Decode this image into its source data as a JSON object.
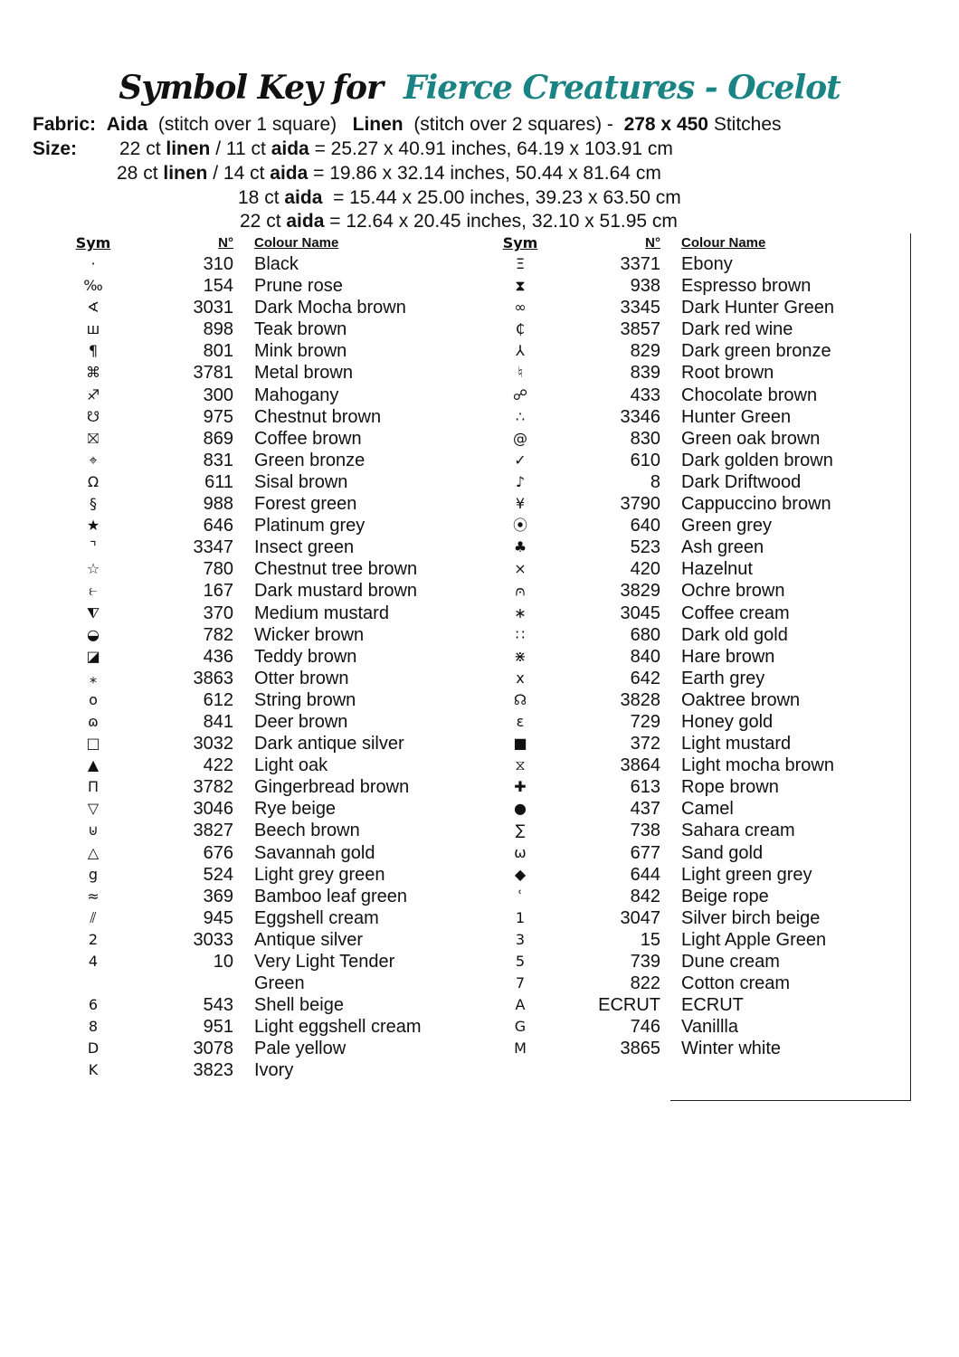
{
  "title": {
    "prefix": "Symbol Key for",
    "pattern": "Fierce Creatures - Ocelot",
    "accent_color": "#1a8383"
  },
  "fabric": {
    "label": "Fabric:",
    "aida": "Aida",
    "aida_note": "(stitch over 1 square)",
    "linen": "Linen",
    "linen_note": "(stitch over 2 squares) -",
    "stitches": "278 x 450",
    "stitches_label": "Stitches"
  },
  "size": {
    "label": "Size:",
    "lines": [
      {
        "a": "22 ct ",
        "b": "linen",
        "c": " / 11 ct ",
        "d": "aida",
        "e": " = 25.27 x 40.91 inches, 64.19 x 103.91 cm"
      },
      {
        "a": "28 ct ",
        "b": "linen",
        "c": " / 14 ct ",
        "d": "aida",
        "e": " = 19.86 x 32.14 inches, 50.44 x 81.64 cm"
      },
      {
        "a": "18 ct ",
        "b": "",
        "c": "",
        "d": "aida",
        "e": "  = 15.44 x 25.00 inches, 39.23 x 63.50 cm"
      },
      {
        "a": "22 ct ",
        "b": "",
        "c": "",
        "d": "aida",
        "e": " = 12.64 x 20.45 inches, 32.10 x 51.95 cm"
      }
    ]
  },
  "headers": {
    "sym": "Sym",
    "num": "N°",
    "name": "Colour Name"
  },
  "left": [
    [
      "·",
      "310",
      "Black"
    ],
    [
      "‰",
      "154",
      "Prune rose"
    ],
    [
      "∢",
      "3031",
      "Dark Mocha brown"
    ],
    [
      "ш",
      "898",
      "Teak brown"
    ],
    [
      "¶",
      "801",
      "Mink brown"
    ],
    [
      "⌘",
      "3781",
      "Metal brown"
    ],
    [
      "♐",
      "300",
      "Mahogany"
    ],
    [
      "☋",
      "975",
      "Chestnut brown"
    ],
    [
      "⛝",
      "869",
      "Coffee brown"
    ],
    [
      "⌖",
      "831",
      "Green bronze"
    ],
    [
      "Ω",
      "611",
      "Sisal brown"
    ],
    [
      "§",
      "988",
      "Forest green"
    ],
    [
      "★",
      "646",
      "Platinum grey"
    ],
    [
      "⌝",
      "3347",
      "Insect green"
    ],
    [
      "☆",
      "780",
      "Chestnut tree brown"
    ],
    [
      "⥼",
      "167",
      "Dark mustard brown"
    ],
    [
      "⧨",
      "370",
      "Medium mustard"
    ],
    [
      "◒",
      "782",
      "Wicker brown"
    ],
    [
      "◪",
      "436",
      "Teddy brown"
    ],
    [
      "⁎",
      "3863",
      "Otter brown"
    ],
    [
      "o",
      "612",
      "String brown"
    ],
    [
      "ɷ",
      "841",
      "Deer brown"
    ],
    [
      "□",
      "3032",
      "Dark antique silver"
    ],
    [
      "▲",
      "422",
      "Light oak"
    ],
    [
      "Π",
      "3782",
      "Gingerbread brown"
    ],
    [
      "▽",
      "3046",
      "Rye beige"
    ],
    [
      "⊍",
      "3827",
      "Beech brown"
    ],
    [
      "△",
      "676",
      "Savannah gold"
    ],
    [
      "g",
      "524",
      "Light grey green"
    ],
    [
      "≈",
      "369",
      "Bamboo leaf green"
    ],
    [
      "⫽",
      "945",
      "Eggshell cream"
    ],
    [
      "2",
      "3033",
      "Antique silver"
    ],
    [
      "4",
      "10",
      "Very Light Tender Green"
    ],
    [
      "6",
      "543",
      "Shell beige"
    ],
    [
      "8",
      "951",
      "Light eggshell cream"
    ],
    [
      "D",
      "3078",
      "Pale yellow"
    ],
    [
      "K",
      "3823",
      "Ivory"
    ]
  ],
  "right": [
    [
      "Ξ",
      "3371",
      "Ebony"
    ],
    [
      "⧗",
      "938",
      "Espresso brown"
    ],
    [
      "∞",
      "3345",
      "Dark Hunter Green"
    ],
    [
      "₵",
      "3857",
      "Dark red wine"
    ],
    [
      "⅄",
      "829",
      "Dark green bronze"
    ],
    [
      "♮",
      "839",
      "Root brown"
    ],
    [
      "☍",
      "433",
      "Chocolate brown"
    ],
    [
      "∴",
      "3346",
      "Hunter Green"
    ],
    [
      "@",
      "830",
      "Green oak brown"
    ],
    [
      "✓",
      "610",
      "Dark golden brown"
    ],
    [
      "♪",
      "8",
      "Dark Driftwood"
    ],
    [
      "¥",
      "3790",
      "Cappuccino brown"
    ],
    [
      "⦿",
      "640",
      "Green grey"
    ],
    [
      "♣",
      "523",
      "Ash green"
    ],
    [
      "⨯",
      "420",
      "Hazelnut"
    ],
    [
      "⩀",
      "3829",
      "Ochre brown"
    ],
    [
      "∗",
      "3045",
      "Coffee cream"
    ],
    [
      "∷",
      "680",
      "Dark old gold"
    ],
    [
      "⋇",
      "840",
      "Hare brown"
    ],
    [
      "x",
      "642",
      "Earth grey"
    ],
    [
      "☊",
      "3828",
      "Oaktree brown"
    ],
    [
      "ε",
      "729",
      "Honey gold"
    ],
    [
      "■",
      "372",
      "Light mustard"
    ],
    [
      "⧖",
      "3864",
      "Light mocha brown"
    ],
    [
      "✚",
      "613",
      "Rope brown"
    ],
    [
      "●",
      "437",
      "Camel"
    ],
    [
      "∑",
      "738",
      "Sahara cream"
    ],
    [
      "ω",
      "677",
      "Sand gold"
    ],
    [
      "◆",
      "644",
      "Light green grey"
    ],
    [
      "ʿ",
      "842",
      "Beige rope"
    ],
    [
      "1",
      "3047",
      "Silver birch beige"
    ],
    [
      "3",
      "15",
      "Light Apple Green"
    ],
    [
      "5",
      "739",
      "Dune cream"
    ],
    [
      "7",
      "822",
      "Cotton cream"
    ],
    [
      "A",
      "ECRUT",
      "ECRUT"
    ],
    [
      "G",
      "746",
      "Vanillla"
    ],
    [
      "M",
      "3865",
      "Winter white"
    ]
  ]
}
